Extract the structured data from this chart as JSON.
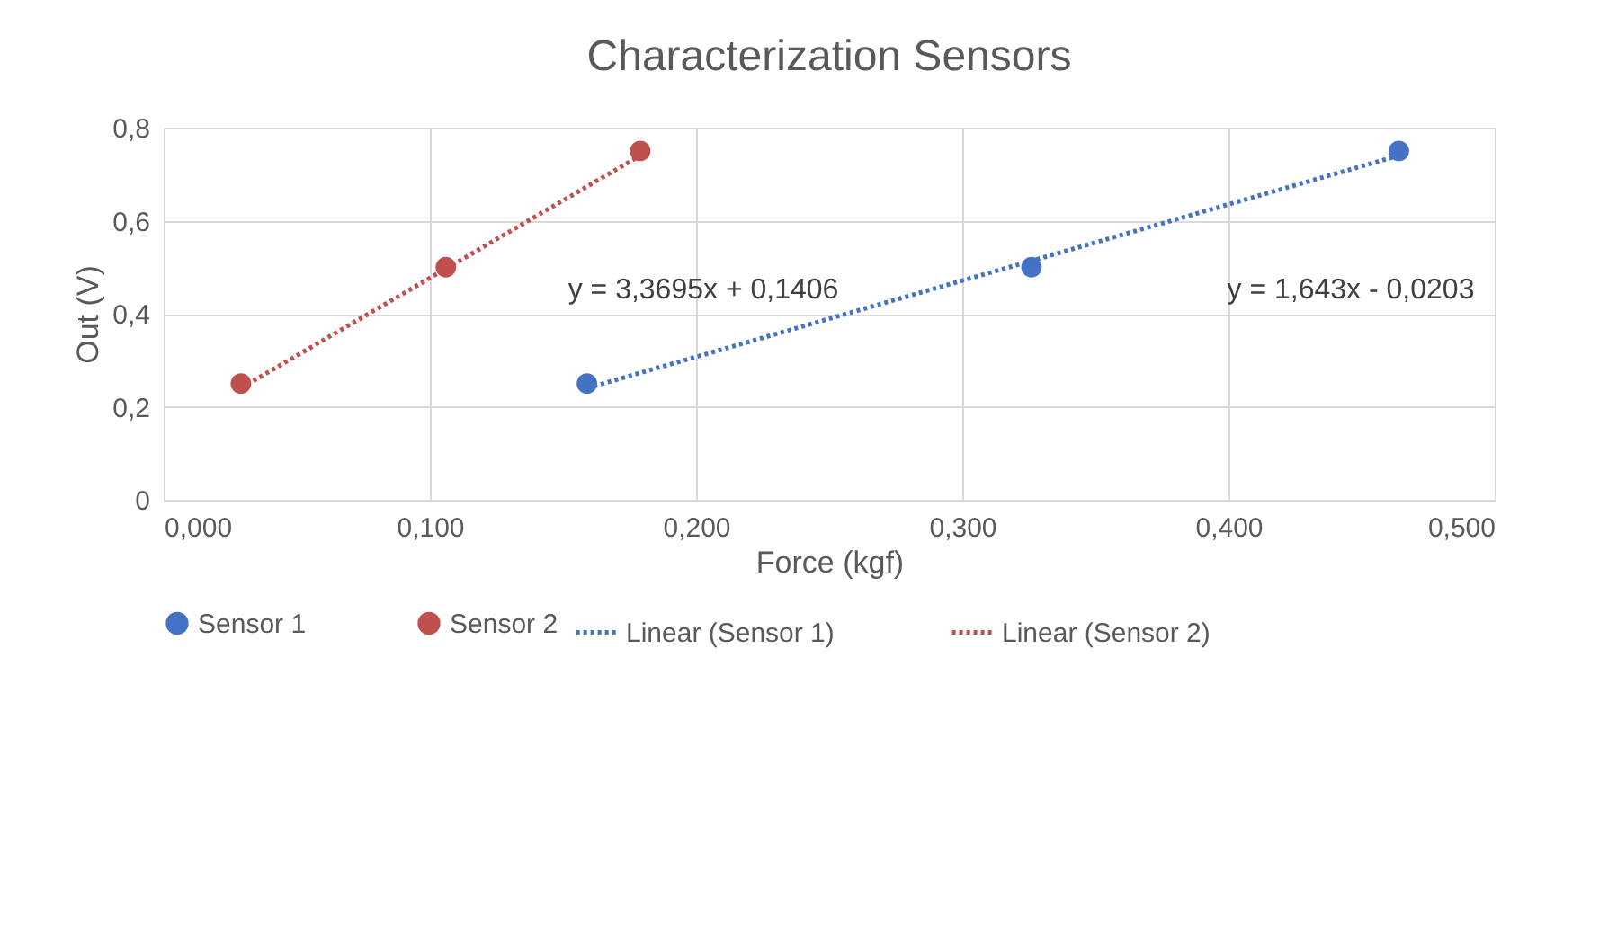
{
  "chart_data": {
    "type": "scatter",
    "title": "Characterization Sensors",
    "xlabel": "Force (kgf)",
    "ylabel": "Out (V)",
    "xlim": [
      0,
      0.5
    ],
    "xticks": [
      {
        "value": 0,
        "label": "0,000"
      },
      {
        "value": 0.1,
        "label": "0,100"
      },
      {
        "value": 0.2,
        "label": "0,200"
      },
      {
        "value": 0.3,
        "label": "0,300"
      },
      {
        "value": 0.4,
        "label": "0,400"
      },
      {
        "value": 0.5,
        "label": "0,500"
      }
    ],
    "ylim": [
      0,
      0.8
    ],
    "yticks": [
      0,
      {
        "value": 0.2,
        "label": "0,2"
      },
      {
        "value": 0.4,
        "label": "0,4"
      },
      {
        "value": 0.6,
        "label": "0,6"
      },
      {
        "value": 0.8,
        "label": "0,8"
      }
    ],
    "grid": true,
    "legend": "bottom",
    "series": [
      {
        "name": "Sensor 1",
        "marker": "circle",
        "color": "#4472c4",
        "x": [
          0.159,
          0.326,
          0.464
        ],
        "values": [
          0.25,
          0.5,
          0.75
        ]
      },
      {
        "name": "Sensor 2",
        "marker": "circle",
        "color": "#c0504d",
        "x": [
          0.029,
          0.106,
          0.179
        ],
        "values": [
          0.25,
          0.5,
          0.75
        ]
      },
      {
        "name": "Linear (Sensor 1)",
        "type": "line",
        "marker": "none",
        "line_style": "dotted",
        "color": "#4472c4",
        "x": [
          0.159,
          0.464
        ],
        "values": [
          0.24,
          0.74
        ]
      },
      {
        "name": "Linear (Sensor 2)",
        "type": "line",
        "marker": "none",
        "line_style": "dotted",
        "color": "#c0504d",
        "x": [
          0.029,
          0.179
        ],
        "values": [
          0.24,
          0.74
        ]
      }
    ],
    "annotations": [
      "y = 3,3695x + 0,1406",
      "y = 1,643x - 0,0203"
    ]
  }
}
